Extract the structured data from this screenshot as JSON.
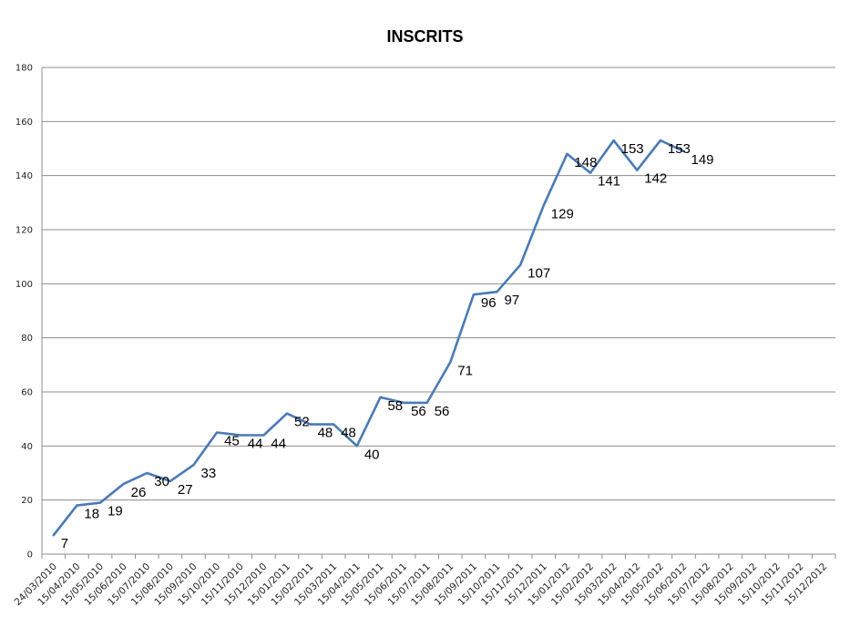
{
  "chart_data": {
    "type": "line",
    "title": "INSCRITS",
    "xlabel": "",
    "ylabel": "",
    "ylim": [
      0,
      180
    ],
    "yticks": [
      0,
      20,
      40,
      60,
      80,
      100,
      120,
      140,
      160,
      180
    ],
    "grid": true,
    "legend": "none",
    "line_color": "#4a7ab5",
    "categories": [
      "24/03/2010",
      "15/04/2010",
      "15/05/2010",
      "15/06/2010",
      "15/07/2010",
      "15/08/2010",
      "15/09/2010",
      "15/10/2010",
      "15/11/2010",
      "15/12/2010",
      "15/01/2011",
      "15/02/2011",
      "15/03/2011",
      "15/04/2011",
      "15/05/2011",
      "15/06/2011",
      "15/07/2011",
      "15/08/2011",
      "15/09/2011",
      "15/10/2011",
      "15/11/2011",
      "15/12/2011",
      "15/01/2012",
      "15/02/2012",
      "15/03/2012",
      "15/04/2012",
      "15/05/2012",
      "15/06/2012",
      "15/07/2012",
      "15/08/2012",
      "15/09/2012",
      "15/10/2012",
      "15/11/2012",
      "15/12/2012"
    ],
    "series": [
      {
        "values": [
          7,
          18,
          19,
          26,
          30,
          27,
          33,
          45,
          44,
          44,
          52,
          48,
          48,
          40,
          58,
          56,
          56,
          71,
          96,
          97,
          107,
          129,
          148,
          141,
          153,
          142,
          153,
          149,
          null,
          null,
          null,
          null,
          null,
          null
        ]
      }
    ]
  }
}
